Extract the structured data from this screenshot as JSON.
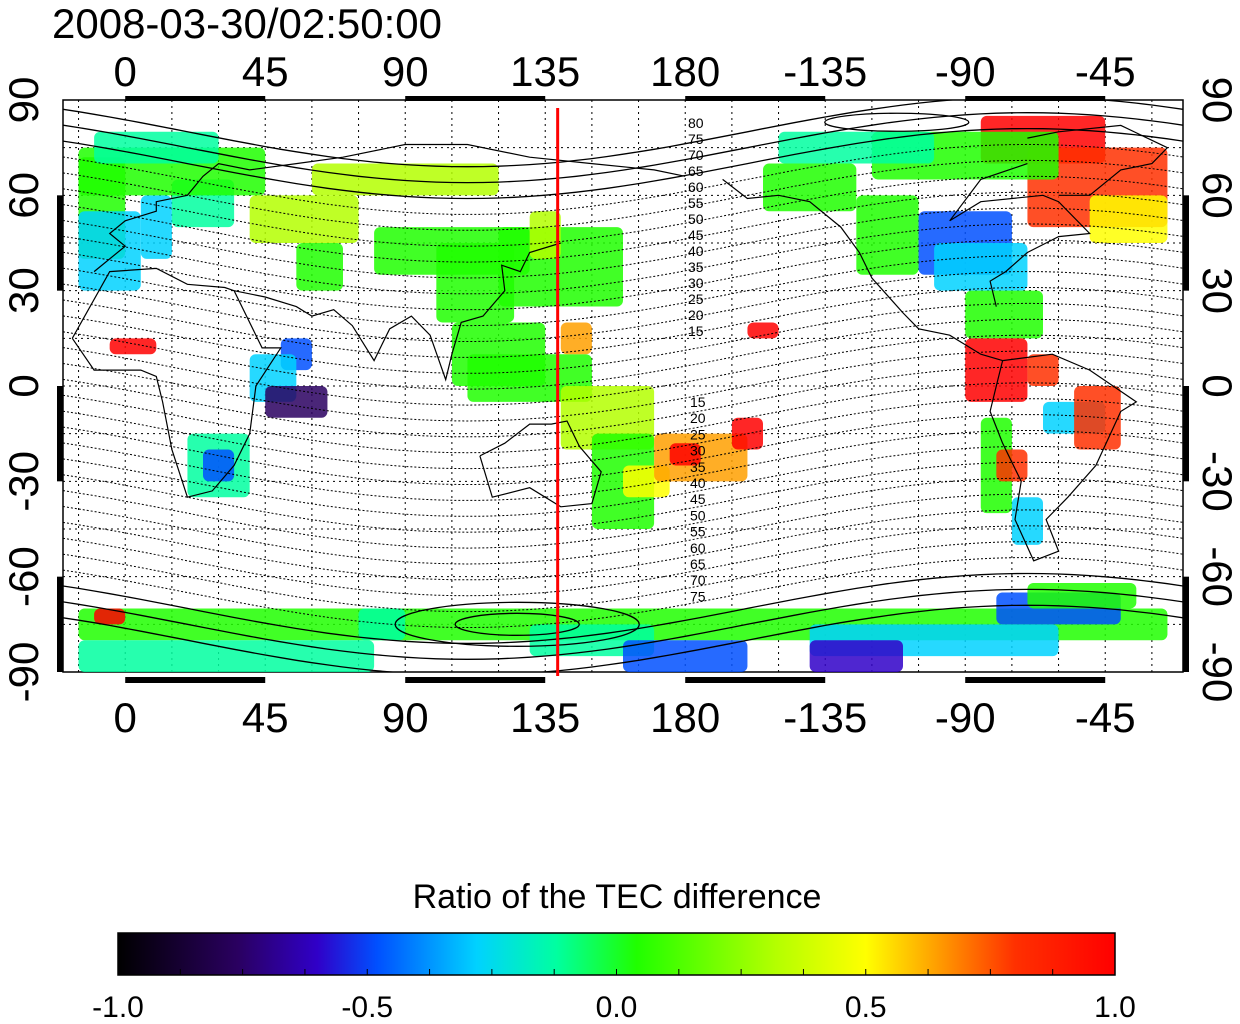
{
  "title": "2008-03-30/02:50:00",
  "colorbar": {
    "label": "Ratio of the TEC difference",
    "ticks": [
      "-1.0",
      "-0.5",
      "0.0",
      "0.5",
      "1.0"
    ],
    "values": [
      -1.0,
      -0.5,
      0.0,
      0.5,
      1.0
    ],
    "range": [
      -1.0,
      1.0
    ],
    "colors": [
      "#000000",
      "#2a0060",
      "#3000c8",
      "#0050ff",
      "#00d2ff",
      "#00ffa0",
      "#20ff00",
      "#b4ff00",
      "#ffff00",
      "#ffa000",
      "#ff3000",
      "#ff0000"
    ]
  },
  "map": {
    "lon_ticks": [
      "0",
      "45",
      "90",
      "135",
      "180",
      "-135",
      "-90",
      "-45"
    ],
    "lon_values": [
      0,
      45,
      90,
      135,
      180,
      225,
      270,
      315
    ],
    "lat_ticks": [
      "90",
      "60",
      "30",
      "0",
      "-30",
      "-60",
      "-90"
    ],
    "lat_values": [
      90,
      60,
      30,
      0,
      -30,
      -60,
      -90
    ],
    "lon_range": [
      -20,
      340
    ],
    "lat_range": [
      -90,
      90
    ],
    "marker_longitude": 139,
    "marker_color": "#ff0000",
    "contour_labels_north": [
      "80",
      "75",
      "70",
      "65",
      "60",
      "55",
      "50",
      "45",
      "40",
      "35",
      "30",
      "25",
      "20",
      "15"
    ],
    "contour_labels_south": [
      "15",
      "20",
      "25",
      "30",
      "35",
      "40",
      "45",
      "50",
      "55",
      "60",
      "65",
      "70",
      "75"
    ]
  }
}
